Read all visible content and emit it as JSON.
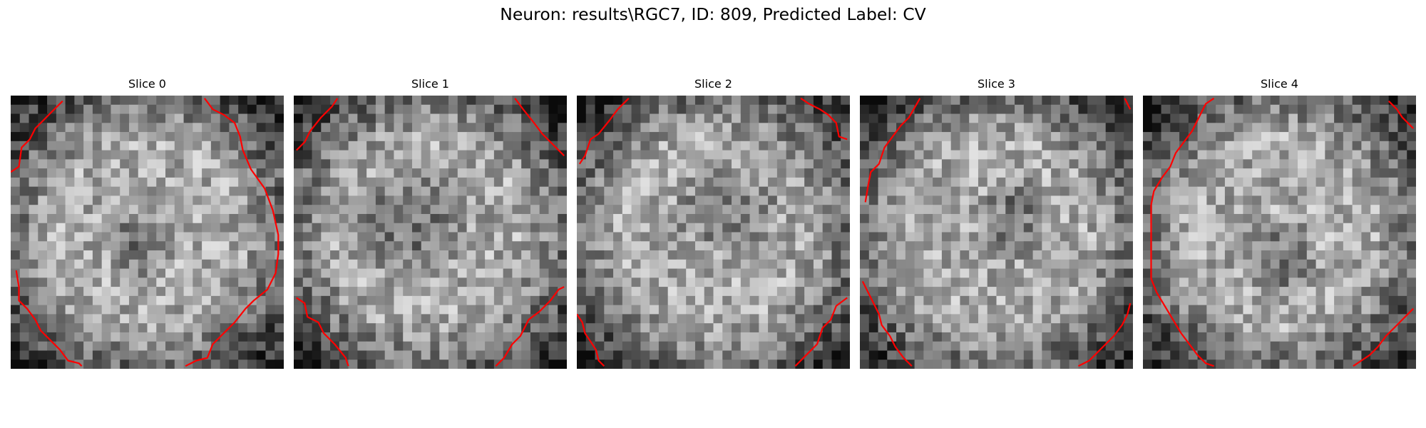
{
  "figure": {
    "title": "Neuron: results\\RGC7, ID: 809, Predicted Label: CV"
  },
  "panels": [
    {
      "title": "Slice 0",
      "seed": 11,
      "dark_blob": [
        0.48,
        0.55,
        0.12,
        0.18
      ],
      "contours": [
        [
          [
            0.0,
            0.28
          ],
          [
            0.03,
            0.26
          ],
          [
            0.04,
            0.19
          ],
          [
            0.07,
            0.16
          ],
          [
            0.09,
            0.12
          ],
          [
            0.12,
            0.09
          ],
          [
            0.15,
            0.06
          ],
          [
            0.19,
            0.02
          ]
        ],
        [
          [
            0.71,
            0.01
          ],
          [
            0.74,
            0.05
          ],
          [
            0.78,
            0.07
          ],
          [
            0.82,
            0.1
          ],
          [
            0.84,
            0.15
          ],
          [
            0.85,
            0.2
          ],
          [
            0.88,
            0.27
          ],
          [
            0.93,
            0.34
          ],
          [
            0.96,
            0.42
          ],
          [
            0.98,
            0.51
          ],
          [
            0.98,
            0.58
          ],
          [
            0.97,
            0.65
          ],
          [
            0.94,
            0.71
          ],
          [
            0.89,
            0.75
          ],
          [
            0.86,
            0.78
          ],
          [
            0.82,
            0.83
          ],
          [
            0.78,
            0.87
          ],
          [
            0.74,
            0.91
          ],
          [
            0.72,
            0.96
          ],
          [
            0.68,
            0.97
          ],
          [
            0.64,
            0.99
          ]
        ],
        [
          [
            0.02,
            0.64
          ],
          [
            0.03,
            0.7
          ],
          [
            0.03,
            0.75
          ],
          [
            0.06,
            0.78
          ],
          [
            0.09,
            0.82
          ],
          [
            0.11,
            0.86
          ],
          [
            0.15,
            0.9
          ],
          [
            0.18,
            0.93
          ],
          [
            0.21,
            0.97
          ],
          [
            0.25,
            0.98
          ],
          [
            0.26,
            0.99
          ]
        ]
      ]
    },
    {
      "title": "Slice 1",
      "seed": 23,
      "dark_blob": [
        0.43,
        0.47,
        0.25,
        0.22
      ],
      "contours": [
        [
          [
            0.01,
            0.2
          ],
          [
            0.04,
            0.17
          ],
          [
            0.06,
            0.13
          ],
          [
            0.1,
            0.08
          ],
          [
            0.14,
            0.04
          ],
          [
            0.16,
            0.01
          ]
        ],
        [
          [
            0.81,
            0.01
          ],
          [
            0.84,
            0.05
          ],
          [
            0.88,
            0.1
          ],
          [
            0.91,
            0.14
          ],
          [
            0.95,
            0.18
          ],
          [
            0.99,
            0.22
          ]
        ],
        [
          [
            0.01,
            0.74
          ],
          [
            0.04,
            0.76
          ],
          [
            0.05,
            0.81
          ],
          [
            0.09,
            0.83
          ],
          [
            0.11,
            0.87
          ],
          [
            0.15,
            0.91
          ],
          [
            0.19,
            0.96
          ],
          [
            0.2,
            0.99
          ]
        ],
        [
          [
            0.74,
            0.99
          ],
          [
            0.77,
            0.96
          ],
          [
            0.8,
            0.91
          ],
          [
            0.83,
            0.88
          ],
          [
            0.86,
            0.82
          ],
          [
            0.9,
            0.79
          ],
          [
            0.94,
            0.75
          ],
          [
            0.97,
            0.71
          ],
          [
            0.99,
            0.7
          ]
        ]
      ]
    },
    {
      "title": "Slice 2",
      "seed": 37,
      "dark_blob": [
        0.55,
        0.42,
        0.22,
        0.16
      ],
      "contours": [
        [
          [
            0.01,
            0.25
          ],
          [
            0.03,
            0.22
          ],
          [
            0.05,
            0.16
          ],
          [
            0.08,
            0.14
          ],
          [
            0.12,
            0.09
          ],
          [
            0.15,
            0.05
          ],
          [
            0.19,
            0.01
          ]
        ],
        [
          [
            0.82,
            0.01
          ],
          [
            0.85,
            0.03
          ],
          [
            0.89,
            0.05
          ],
          [
            0.92,
            0.07
          ],
          [
            0.95,
            0.1
          ],
          [
            0.96,
            0.15
          ],
          [
            0.99,
            0.16
          ]
        ],
        [
          [
            0.0,
            0.8
          ],
          [
            0.02,
            0.83
          ],
          [
            0.03,
            0.87
          ],
          [
            0.05,
            0.9
          ],
          [
            0.07,
            0.93
          ],
          [
            0.08,
            0.97
          ],
          [
            0.1,
            0.99
          ]
        ],
        [
          [
            0.8,
            0.99
          ],
          [
            0.84,
            0.95
          ],
          [
            0.88,
            0.91
          ],
          [
            0.9,
            0.85
          ],
          [
            0.93,
            0.82
          ],
          [
            0.95,
            0.77
          ],
          [
            0.99,
            0.74
          ]
        ]
      ]
    },
    {
      "title": "Slice 3",
      "seed": 53,
      "dark_blob": [
        0.57,
        0.45,
        0.14,
        0.18
      ],
      "contours": [
        [
          [
            0.02,
            0.39
          ],
          [
            0.03,
            0.33
          ],
          [
            0.04,
            0.28
          ],
          [
            0.07,
            0.25
          ],
          [
            0.09,
            0.19
          ],
          [
            0.12,
            0.15
          ],
          [
            0.15,
            0.11
          ],
          [
            0.18,
            0.08
          ],
          [
            0.22,
            0.01
          ]
        ],
        [
          [
            0.97,
            0.01
          ],
          [
            0.98,
            0.03
          ],
          [
            0.99,
            0.05
          ]
        ],
        [
          [
            0.01,
            0.68
          ],
          [
            0.03,
            0.72
          ],
          [
            0.05,
            0.76
          ],
          [
            0.07,
            0.8
          ],
          [
            0.08,
            0.84
          ],
          [
            0.11,
            0.88
          ],
          [
            0.13,
            0.92
          ],
          [
            0.16,
            0.96
          ],
          [
            0.19,
            0.99
          ]
        ],
        [
          [
            0.8,
            0.99
          ],
          [
            0.84,
            0.97
          ],
          [
            0.87,
            0.94
          ],
          [
            0.9,
            0.91
          ],
          [
            0.93,
            0.88
          ],
          [
            0.96,
            0.84
          ],
          [
            0.98,
            0.8
          ],
          [
            0.99,
            0.76
          ]
        ]
      ]
    },
    {
      "title": "Slice 4",
      "seed": 71,
      "dark_blob": [
        0.5,
        0.6,
        0.16,
        0.16
      ],
      "contours": [
        [
          [
            0.26,
            0.01
          ],
          [
            0.23,
            0.03
          ],
          [
            0.21,
            0.07
          ],
          [
            0.18,
            0.13
          ],
          [
            0.15,
            0.17
          ],
          [
            0.12,
            0.21
          ],
          [
            0.1,
            0.26
          ],
          [
            0.07,
            0.3
          ],
          [
            0.04,
            0.35
          ],
          [
            0.03,
            0.4
          ],
          [
            0.03,
            0.5
          ],
          [
            0.03,
            0.6
          ],
          [
            0.03,
            0.67
          ],
          [
            0.05,
            0.72
          ],
          [
            0.08,
            0.77
          ],
          [
            0.11,
            0.82
          ],
          [
            0.14,
            0.87
          ],
          [
            0.17,
            0.91
          ],
          [
            0.2,
            0.95
          ],
          [
            0.23,
            0.98
          ],
          [
            0.26,
            0.99
          ]
        ],
        [
          [
            0.9,
            0.02
          ],
          [
            0.93,
            0.05
          ],
          [
            0.95,
            0.08
          ],
          [
            0.97,
            0.1
          ],
          [
            0.99,
            0.12
          ]
        ],
        [
          [
            0.77,
            0.99
          ],
          [
            0.8,
            0.97
          ],
          [
            0.83,
            0.95
          ],
          [
            0.86,
            0.92
          ],
          [
            0.89,
            0.88
          ],
          [
            0.92,
            0.85
          ],
          [
            0.95,
            0.82
          ],
          [
            0.99,
            0.78
          ]
        ]
      ]
    }
  ],
  "colors": {
    "contour": "#ff0000",
    "title_text": "#000000",
    "background": "#ffffff"
  }
}
